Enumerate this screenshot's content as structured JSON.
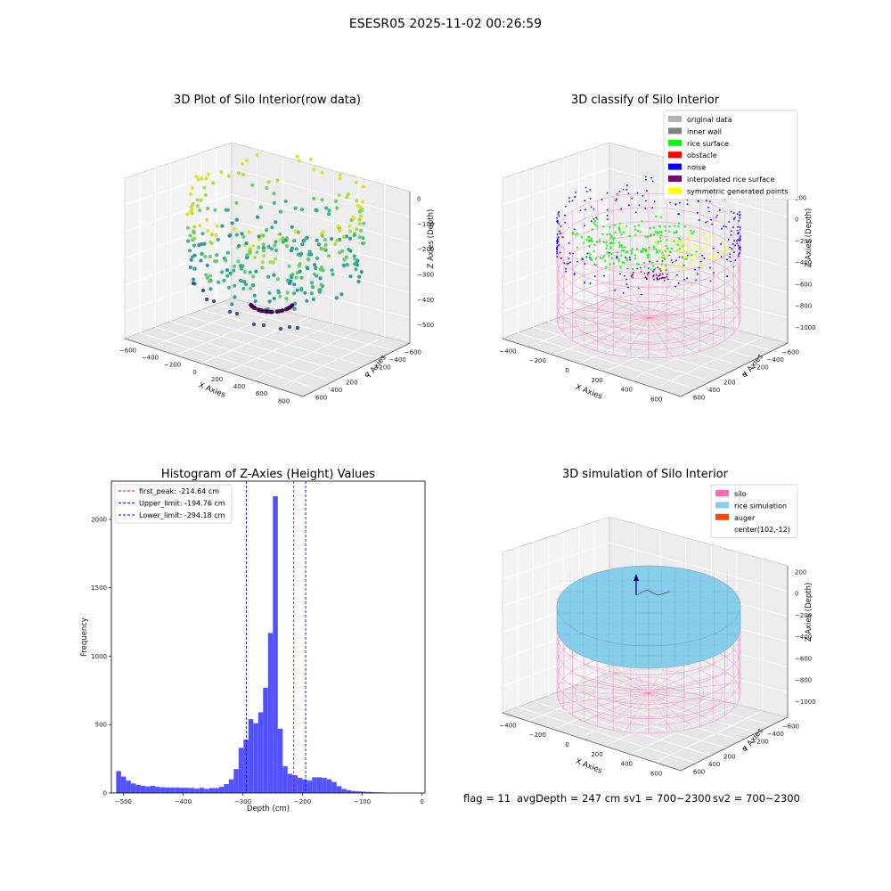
{
  "suptitle": "ESESR05 2025-11-02 00:26:59",
  "status_line": {
    "flag": "flag = 11",
    "avg_depth": "avgDepth = 247 cm",
    "sv1": "sv1 = 700~2300",
    "sv2": "sv2 = 700~2300"
  },
  "colors": {
    "histogram_bar": "#4f4fff",
    "first_peak_line": "#ff0000",
    "limit_lines": "#0000ff",
    "silo": "#ff69b4",
    "rice_simulation": "#87ceeb",
    "auger": "#ff4500",
    "original_data": "#b3b3b3",
    "inner_wall": "#808080",
    "rice_surface": "#00ff00",
    "obstacle": "#ff0000",
    "noise": "#0000ff",
    "interpolated_rice_surface": "#800080",
    "symmetric_generated_points": "#ffff00"
  },
  "chart_data": [
    {
      "type": "scatter3d",
      "title": "3D Plot of Silo Interior(row data)",
      "xlabel": "X Axies",
      "ylabel": "Y Axies",
      "zlabel": "Z Axies (Depth)",
      "x_ticks": [
        "−600",
        "−400",
        "−200",
        "0",
        "200",
        "400",
        "600",
        "800"
      ],
      "y_ticks": [
        "−600",
        "−400",
        "−200",
        "0",
        "200",
        "400",
        "600"
      ],
      "z_ticks": [
        "0",
        "−100",
        "−200",
        "−300",
        "−400",
        "−500"
      ],
      "colormap": "viridis"
    },
    {
      "type": "scatter3d",
      "title": "3D classify of Silo Interior",
      "xlabel": "X Axies",
      "ylabel": "Y Axies",
      "zlabel": "Z Axies (Depth)",
      "x_ticks": [
        "−400",
        "−200",
        "0",
        "200",
        "400",
        "600"
      ],
      "y_ticks": [
        "−600",
        "−400",
        "−200",
        "0",
        "200",
        "400",
        "600"
      ],
      "z_ticks": [
        "200",
        "0",
        "−200",
        "−400",
        "−600",
        "−800",
        "−1000"
      ],
      "legend": [
        "original data",
        "inner wall",
        "rice surface",
        "obstacle",
        "noise",
        "interpolated rice surface",
        "symmetric generated points"
      ],
      "legend_position": "top-right"
    },
    {
      "type": "bar",
      "title": "Histogram of Z-Axies (Height) Values",
      "xlabel": "Depth (cm)",
      "ylabel": "Frequency",
      "xlim": [
        -520,
        5
      ],
      "ylim": [
        0,
        2280
      ],
      "x_ticks": [
        "−500",
        "−400",
        "−300",
        "−200",
        "−100",
        "0"
      ],
      "y_ticks": [
        "0",
        "500",
        "1000",
        "1500",
        "2000"
      ],
      "bin_start": -512,
      "bin_width": 8.2,
      "values": [
        160,
        120,
        90,
        70,
        60,
        52,
        48,
        52,
        45,
        42,
        40,
        40,
        40,
        38,
        38,
        37,
        32,
        38,
        30,
        36,
        36,
        45,
        65,
        100,
        175,
        330,
        390,
        540,
        510,
        590,
        770,
        1170,
        2170,
        470,
        195,
        140,
        130,
        110,
        100,
        90,
        115,
        115,
        110,
        100,
        80,
        50,
        30,
        20,
        15,
        12,
        10,
        8,
        6,
        5,
        4
      ],
      "vlines": [
        {
          "label": "first_peak: -214.64 cm",
          "x": -214.64,
          "style": "red-dashed"
        },
        {
          "label": "Upper_limit: -194.76 cm",
          "x": -194.76,
          "style": "blue-dashed"
        },
        {
          "label": "Lower_limit: -294.18 cm",
          "x": -294.18,
          "style": "blue-dashed"
        }
      ],
      "legend_position": "top-left"
    },
    {
      "type": "surface3d",
      "title": "3D simulation of Silo Interior",
      "xlabel": "X Axies",
      "ylabel": "Y Axies",
      "zlabel": "Z Axies (Depth)",
      "x_ticks": [
        "−400",
        "−200",
        "0",
        "200",
        "400",
        "600"
      ],
      "y_ticks": [
        "−600",
        "−400",
        "−200",
        "0",
        "200",
        "400",
        "600"
      ],
      "z_ticks": [
        "200",
        "0",
        "−200",
        "−400",
        "−600",
        "−800",
        "−1000"
      ],
      "legend": [
        "silo",
        "rice simulation",
        "auger",
        "center(102,-12)"
      ],
      "legend_position": "top-right"
    }
  ]
}
